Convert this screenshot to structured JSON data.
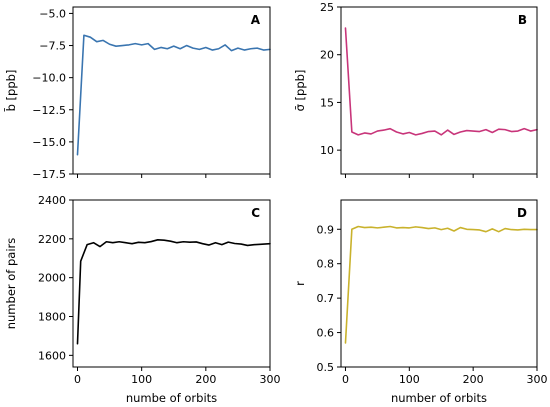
{
  "chart_data": [
    {
      "type": "line",
      "panel": "A",
      "xlabel": "",
      "ylabel": "b̄ [ppb]",
      "xlim": [
        -7,
        300
      ],
      "ylim": [
        -17.5,
        -4.5
      ],
      "xticks": [
        0,
        100,
        200,
        300
      ],
      "yticks": [
        -17.5,
        -15.0,
        -12.5,
        -10.0,
        -7.5,
        -5.0
      ],
      "ytick_labels": [
        "−17.5",
        "−15.0",
        "−12.5",
        "−10.0",
        "−7.5",
        "−5.0"
      ],
      "show_xticklabels": false,
      "color": "#3a75b0",
      "series": [
        {
          "x": [
            0,
            10,
            20,
            30,
            40,
            50,
            60,
            70,
            80,
            90,
            100,
            110,
            120,
            130,
            140,
            150,
            160,
            170,
            180,
            190,
            200,
            210,
            220,
            230,
            240,
            250,
            260,
            270,
            280,
            290,
            300
          ],
          "values": [
            -16.0,
            -6.7,
            -6.85,
            -7.2,
            -7.1,
            -7.4,
            -7.55,
            -7.5,
            -7.45,
            -7.35,
            -7.45,
            -7.35,
            -7.8,
            -7.65,
            -7.75,
            -7.55,
            -7.75,
            -7.5,
            -7.7,
            -7.8,
            -7.65,
            -7.85,
            -7.75,
            -7.45,
            -7.9,
            -7.7,
            -7.85,
            -7.75,
            -7.7,
            -7.85,
            -7.8
          ]
        }
      ]
    },
    {
      "type": "line",
      "panel": "B",
      "xlabel": "",
      "ylabel": "σ̄ [ppb]",
      "xlim": [
        -7,
        300
      ],
      "ylim": [
        7.5,
        25
      ],
      "xticks": [
        0,
        100,
        200,
        300
      ],
      "yticks": [
        10,
        15,
        20,
        25
      ],
      "ytick_labels": [
        "10",
        "15",
        "20",
        "25"
      ],
      "show_xticklabels": false,
      "color": "#c8357a",
      "series": [
        {
          "x": [
            0,
            10,
            20,
            30,
            40,
            50,
            60,
            70,
            80,
            90,
            100,
            110,
            120,
            130,
            140,
            150,
            160,
            170,
            180,
            190,
            200,
            210,
            220,
            230,
            240,
            250,
            260,
            270,
            280,
            290,
            300
          ],
          "values": [
            22.8,
            11.9,
            11.6,
            11.8,
            11.7,
            12.0,
            12.1,
            12.25,
            11.9,
            11.7,
            11.85,
            11.6,
            11.75,
            11.95,
            12.0,
            11.6,
            12.1,
            11.65,
            11.9,
            12.05,
            12.0,
            11.95,
            12.15,
            11.85,
            12.2,
            12.15,
            11.95,
            12.0,
            12.25,
            12.0,
            12.15
          ]
        }
      ]
    },
    {
      "type": "line",
      "panel": "C",
      "xlabel": "numbe of orbits",
      "ylabel": "number of pairs",
      "xlim": [
        -7,
        300
      ],
      "ylim": [
        1540,
        2400
      ],
      "xticks": [
        0,
        100,
        200,
        300
      ],
      "yticks": [
        1600,
        1800,
        2000,
        2200,
        2400
      ],
      "ytick_labels": [
        "1600",
        "1800",
        "2000",
        "2200",
        "2400"
      ],
      "show_xticklabels": true,
      "color": "#000000",
      "series": [
        {
          "x": [
            0,
            5,
            15,
            25,
            35,
            45,
            55,
            65,
            75,
            85,
            95,
            105,
            115,
            125,
            135,
            145,
            155,
            165,
            175,
            185,
            195,
            205,
            215,
            225,
            235,
            245,
            255,
            265,
            275,
            285,
            300
          ],
          "values": [
            1660,
            2085,
            2170,
            2180,
            2160,
            2185,
            2180,
            2185,
            2180,
            2175,
            2182,
            2180,
            2186,
            2195,
            2193,
            2188,
            2180,
            2185,
            2183,
            2184,
            2175,
            2168,
            2180,
            2170,
            2183,
            2176,
            2173,
            2166,
            2170,
            2172,
            2175
          ]
        }
      ]
    },
    {
      "type": "line",
      "panel": "D",
      "xlabel": "number of orbits",
      "ylabel": "r",
      "xlim": [
        -7,
        300
      ],
      "ylim": [
        0.5,
        0.985
      ],
      "xticks": [
        0,
        100,
        200,
        300
      ],
      "yticks": [
        0.5,
        0.6,
        0.7,
        0.8,
        0.9
      ],
      "ytick_labels": [
        "0.5",
        "0.6",
        "0.7",
        "0.8",
        "0.9"
      ],
      "show_xticklabels": true,
      "color": "#c9b22c",
      "series": [
        {
          "x": [
            0,
            10,
            20,
            30,
            40,
            50,
            60,
            70,
            80,
            90,
            100,
            110,
            120,
            130,
            140,
            150,
            160,
            170,
            180,
            190,
            200,
            210,
            220,
            230,
            240,
            250,
            260,
            270,
            280,
            290,
            300
          ],
          "values": [
            0.57,
            0.9,
            0.908,
            0.905,
            0.906,
            0.904,
            0.906,
            0.908,
            0.904,
            0.905,
            0.904,
            0.907,
            0.905,
            0.902,
            0.904,
            0.899,
            0.903,
            0.895,
            0.905,
            0.9,
            0.899,
            0.898,
            0.893,
            0.901,
            0.893,
            0.902,
            0.899,
            0.898,
            0.9,
            0.899,
            0.899
          ]
        }
      ]
    }
  ]
}
